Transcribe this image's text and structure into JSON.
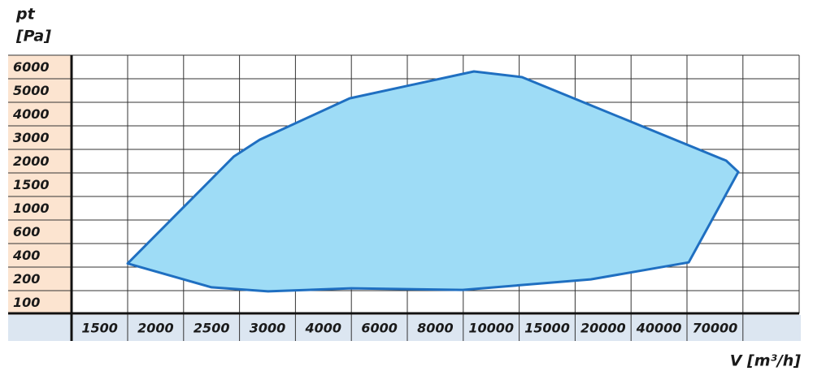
{
  "chart_data": {
    "type": "area",
    "ylabel": {
      "symbol": "pt",
      "unit": "[Pa]"
    },
    "xlabel": "V [m³/h]",
    "x": [
      1500,
      2450,
      2680,
      3970,
      8380,
      10250,
      61000,
      67500,
      40900,
      16400,
      7980,
      4000,
      2755,
      2250
    ],
    "values": [
      230,
      1850,
      2410,
      4170,
      5310,
      5070,
      1760,
      1520,
      240,
      148,
      103,
      110,
      97,
      114
    ],
    "color": "#9edcf6",
    "edge_color": "#1f6fc1",
    "xticks": [
      1500,
      2000,
      2500,
      3000,
      4000,
      6000,
      8000,
      10000,
      15000,
      20000,
      40000,
      70000
    ],
    "yticks": [
      100,
      200,
      400,
      600,
      1000,
      1500,
      2000,
      3000,
      4000,
      5000,
      6000
    ],
    "grid": true
  }
}
